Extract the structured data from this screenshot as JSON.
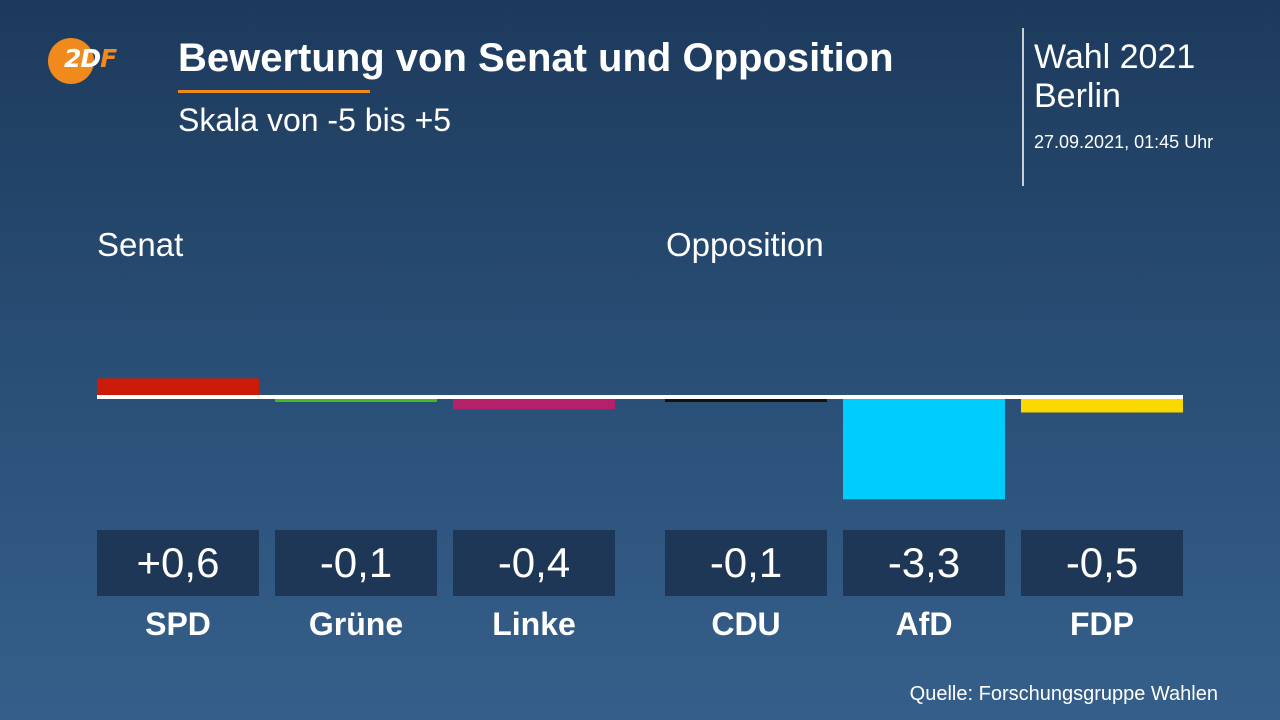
{
  "header": {
    "logo_text_part1": "2D",
    "logo_text_part2": "F",
    "title": "Bewertung von Senat und Opposition",
    "subtitle": "Skala von -5 bis +5",
    "election_line1": "Wahl 2021",
    "election_line2": "Berlin",
    "datetime": "27.09.2021, 01:45 Uhr"
  },
  "footer": {
    "source": "Quelle: Forschungsgruppe Wahlen"
  },
  "chart_data": {
    "type": "bar",
    "ylim": [
      -5,
      5
    ],
    "groups": [
      "Senat",
      "Opposition"
    ],
    "categories": [
      "SPD",
      "Grüne",
      "Linke",
      "CDU",
      "AfD",
      "FDP"
    ],
    "category_groups": [
      "Senat",
      "Senat",
      "Senat",
      "Opposition",
      "Opposition",
      "Opposition"
    ],
    "values": [
      0.6,
      -0.1,
      -0.4,
      -0.1,
      -3.3,
      -0.5
    ],
    "value_labels": [
      "+0,6",
      "-0,1",
      "-0,4",
      "-0,1",
      "-3,3",
      "-0,5"
    ],
    "colors": [
      "#cc1b06",
      "#3fba22",
      "#b4216a",
      "#121212",
      "#00cdfd",
      "#fbd800"
    ],
    "baseline_color": "#ffffff"
  }
}
